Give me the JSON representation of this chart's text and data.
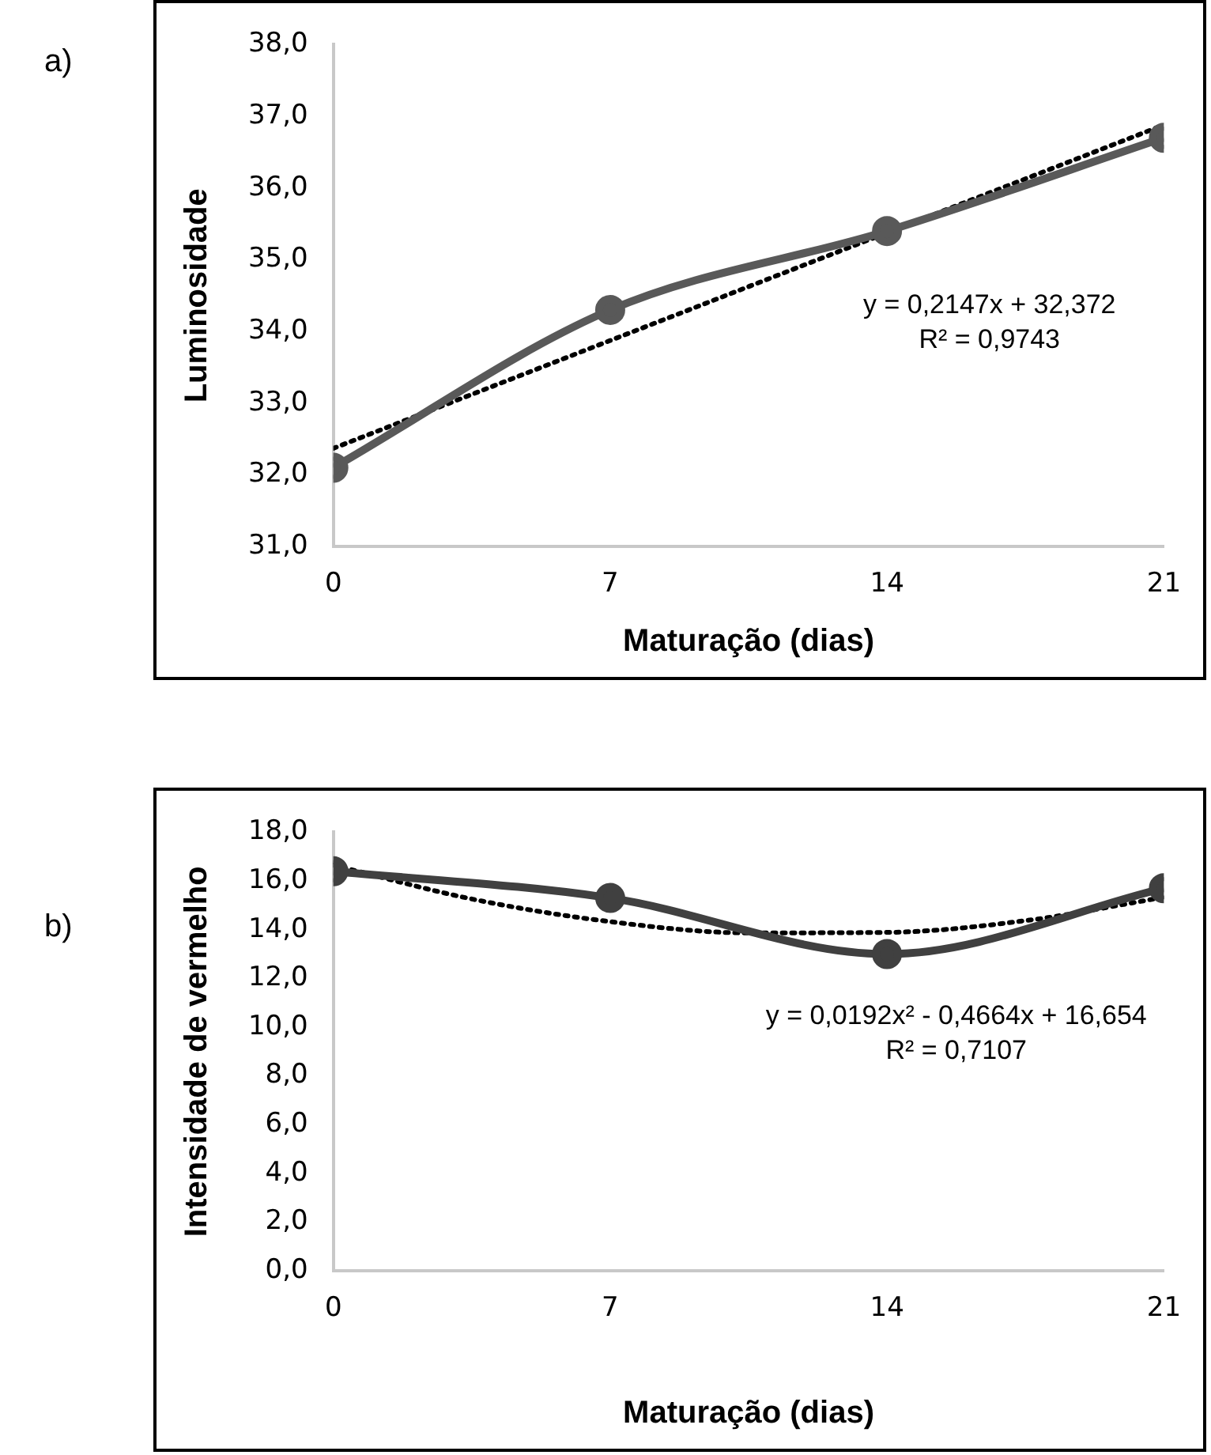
{
  "chart_data": [
    {
      "type": "line",
      "title": "a)",
      "xlabel": "Maturação (dias)",
      "ylabel": "Luminosidade",
      "x": [
        0,
        7,
        14,
        21
      ],
      "xlim": [
        0,
        21
      ],
      "xticks": [
        0,
        7,
        14,
        21
      ],
      "ylim": [
        31,
        38
      ],
      "yticks": [
        {
          "value": 31,
          "label": "31,0"
        },
        {
          "value": 32,
          "label": "32,0"
        },
        {
          "value": 33,
          "label": "33,0"
        },
        {
          "value": 34,
          "label": "34,0"
        },
        {
          "value": 35,
          "label": "35,0"
        },
        {
          "value": 36,
          "label": "36,0"
        },
        {
          "value": 37,
          "label": "37,0"
        },
        {
          "value": 38,
          "label": "38,0"
        }
      ],
      "series": [
        {
          "color": "#595959",
          "values": [
            32.1,
            34.3,
            35.4,
            36.7
          ],
          "marker": "circle",
          "line_style": "solid"
        },
        {
          "type": "line",
          "color": "#000000",
          "x": [
            0,
            21
          ],
          "values": [
            32.37,
            36.88
          ],
          "marker": "none",
          "line_style": "dotted"
        }
      ],
      "annotations": [
        "y = 0,2147x + 32,372",
        "R² = 0,9743"
      ],
      "grid": false,
      "legend": false
    },
    {
      "type": "line",
      "title": "b)",
      "xlabel": "Maturação (dias)",
      "ylabel": "Intensidade de vermelho",
      "x": [
        0,
        7,
        14,
        21
      ],
      "xlim": [
        0,
        21
      ],
      "xticks": [
        0,
        7,
        14,
        21
      ],
      "ylim": [
        0,
        18
      ],
      "yticks": [
        {
          "value": 0,
          "label": "0,0"
        },
        {
          "value": 2,
          "label": "2,0"
        },
        {
          "value": 4,
          "label": "4,0"
        },
        {
          "value": 6,
          "label": "6,0"
        },
        {
          "value": 8,
          "label": "8,0"
        },
        {
          "value": 10,
          "label": "10,0"
        },
        {
          "value": 12,
          "label": "12,0"
        },
        {
          "value": 14,
          "label": "14,0"
        },
        {
          "value": 16,
          "label": "16,0"
        },
        {
          "value": 18,
          "label": "18,0"
        }
      ],
      "series": [
        {
          "color": "#404040",
          "values": [
            16.4,
            15.3,
            13.0,
            15.7
          ],
          "marker": "circle",
          "line_style": "solid"
        },
        {
          "type": "line",
          "color": "#000000",
          "x": [
            0,
            3.5,
            7,
            10.5,
            14,
            17.5,
            21
          ],
          "values": [
            16.65,
            15.26,
            14.33,
            13.87,
            13.89,
            14.37,
            15.33
          ],
          "marker": "none",
          "line_style": "dotted"
        }
      ],
      "annotations": [
        "y = 0,0192x² - 0,4664x + 16,654",
        "R² = 0,7107"
      ],
      "grid": false,
      "legend": false
    }
  ]
}
